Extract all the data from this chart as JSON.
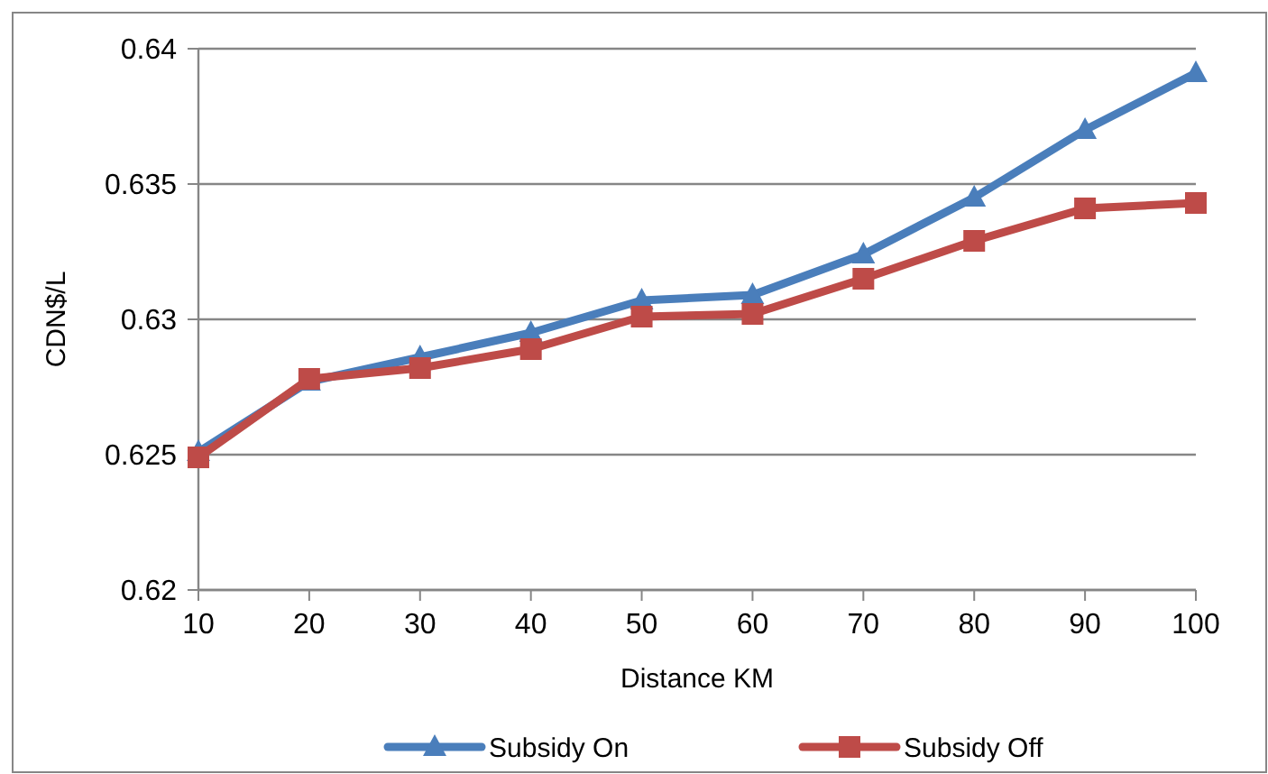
{
  "chart_data": {
    "type": "line",
    "xlabel": "Distance KM",
    "ylabel": "CDN$/L",
    "x": [
      10,
      20,
      30,
      40,
      50,
      60,
      70,
      80,
      90,
      100
    ],
    "series": [
      {
        "name": "Subsidy On",
        "color": "#4a7ebb",
        "marker": "triangle",
        "values": [
          0.6251,
          0.6277,
          0.6286,
          0.6295,
          0.6307,
          0.6309,
          0.6324,
          0.6345,
          0.637,
          0.6391
        ]
      },
      {
        "name": "Subsidy Off",
        "color": "#be4b48",
        "marker": "square",
        "values": [
          0.6249,
          0.6278,
          0.6282,
          0.6289,
          0.6301,
          0.6302,
          0.6315,
          0.6329,
          0.6341,
          0.6343
        ]
      }
    ],
    "xlim": [
      10,
      100
    ],
    "xticks": [
      10,
      20,
      30,
      40,
      50,
      60,
      70,
      80,
      90,
      100
    ],
    "ylim": [
      0.62,
      0.64
    ],
    "yticks": [
      0.62,
      0.625,
      0.63,
      0.635,
      0.64
    ],
    "grid": "y",
    "legend": "bottom"
  }
}
